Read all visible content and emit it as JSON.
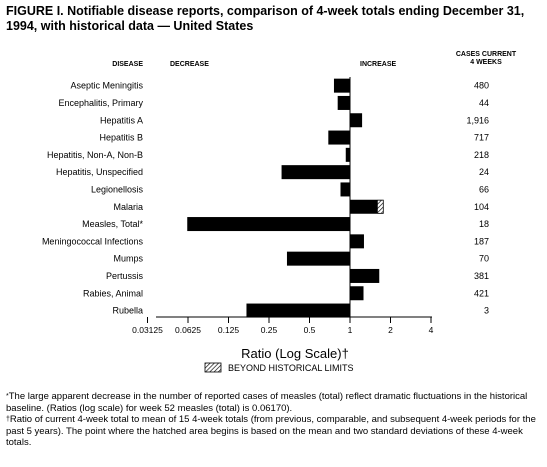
{
  "title": "FIGURE I. Notifiable disease reports, comparison of 4-week totals ending December 31, 1994, with historical data — United States",
  "headers": {
    "disease": "DISEASE",
    "decrease": "DECREASE",
    "increase": "INCREASE",
    "cases_line1": "CASES CURRENT",
    "cases_line2": "4 WEEKS"
  },
  "legend": {
    "label": "BEYOND HISTORICAL LIMITS"
  },
  "footnotes": {
    "star_symbol": "*",
    "star_text": "The large apparent decrease in the number of reported cases of measles (total) reflect dramatic fluctuations in the historical baseline. (Ratios (log scale) for week 52 measles (total) is 0.06170).",
    "dagger_symbol": "†",
    "dagger_text": "Ratio of current 4-week total to mean of 15 4-week totals (from previous, comparable, and subsequent 4-week periods for the past 5 years). The point where the hatched area begins is based on the mean and two standard deviations of these 4-week totals."
  },
  "colors": {
    "bar": "#000000",
    "background": "#ffffff"
  },
  "chart_data": {
    "type": "bar",
    "orientation": "horizontal",
    "scale": "log2",
    "baseline": 1,
    "xlabel": "Ratio (Log Scale)†",
    "xlim": [
      0.03125,
      4
    ],
    "xticks": [
      "0.03125",
      "0.0625",
      "0.125",
      "0.25",
      "0.5",
      "1",
      "2",
      "4"
    ],
    "categories": [
      "Aseptic Meningitis",
      "Encephalitis, Primary",
      "Hepatitis A",
      "Hepatitis B",
      "Hepatitis, Non-A, Non-B",
      "Hepatitis, Unspecified",
      "Legionellosis",
      "Malaria",
      "Measles, Total*",
      "Meningococcal Infections",
      "Mumps",
      "Pertussis",
      "Rabies, Animal",
      "Rubella"
    ],
    "values": [
      0.76,
      0.81,
      1.23,
      0.69,
      0.93,
      0.31,
      0.85,
      1.78,
      0.0617,
      1.27,
      0.34,
      1.65,
      1.26,
      0.17
    ],
    "beyond_limits_start": [
      null,
      null,
      null,
      null,
      null,
      null,
      null,
      1.6,
      null,
      null,
      null,
      null,
      null,
      null
    ],
    "cases": [
      "480",
      "44",
      "1,916",
      "717",
      "218",
      "24",
      "66",
      "104",
      "18",
      "187",
      "70",
      "381",
      "421",
      "3"
    ]
  }
}
